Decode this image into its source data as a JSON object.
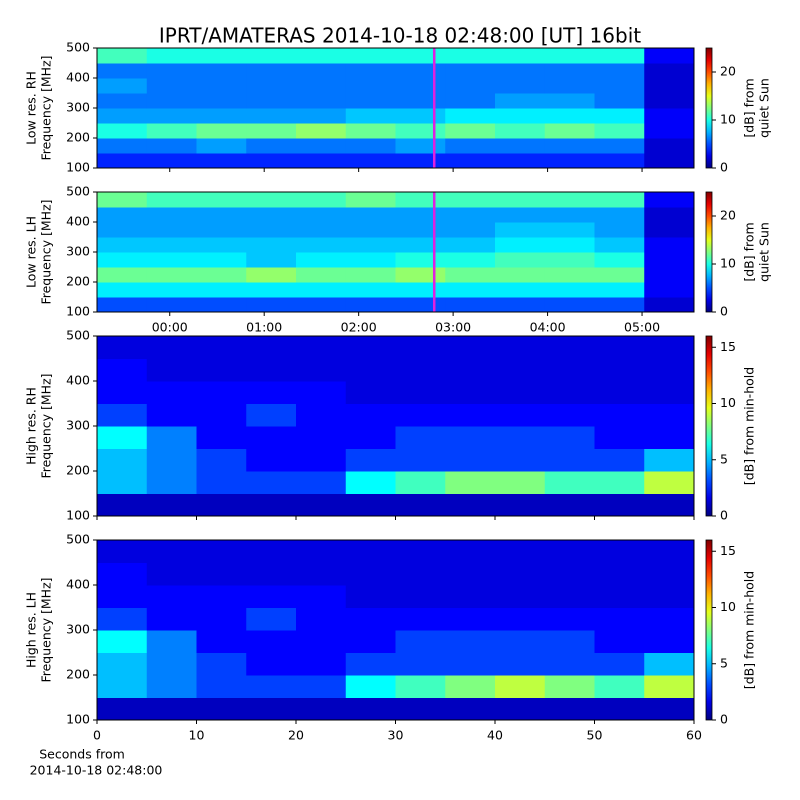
{
  "chart_data": [
    {
      "type": "heatmap",
      "title": "IPRT/AMATERAS 2014-10-18 02:48:00 [UT]   16bit",
      "ylabel": [
        "Low res. RH",
        "Frequency [MHz]"
      ],
      "colorbar_label": [
        "[dB] from",
        "quiet Sun"
      ],
      "xlim": [
        -0.77,
        5.55
      ],
      "ylim": [
        100,
        500
      ],
      "yticks": [
        100,
        200,
        300,
        400,
        500
      ],
      "zlim": [
        0,
        25
      ],
      "zticks": [
        0,
        10,
        20
      ],
      "marker_x": 2.8,
      "marker_color": "#e020e0",
      "z": [
        [
          4,
          4,
          4,
          4,
          4,
          4,
          4,
          4,
          4,
          4,
          4,
          2
        ],
        [
          6,
          6,
          7,
          6,
          6,
          6,
          7,
          6,
          6,
          6,
          6,
          2
        ],
        [
          10,
          11,
          12,
          12,
          13,
          12,
          11,
          12,
          11,
          12,
          11,
          3
        ],
        [
          7,
          7,
          7,
          7,
          7,
          8,
          8,
          9,
          9,
          9,
          9,
          3
        ],
        [
          6,
          6,
          6,
          6,
          6,
          6,
          6,
          6,
          7,
          7,
          6,
          2
        ],
        [
          7,
          6,
          6,
          6,
          6,
          6,
          6,
          6,
          6,
          6,
          6,
          2
        ],
        [
          6,
          6,
          6,
          6,
          6,
          6,
          6,
          6,
          6,
          6,
          6,
          2
        ],
        [
          11,
          10,
          10,
          10,
          10,
          10,
          10,
          10,
          10,
          10,
          10,
          3
        ]
      ]
    },
    {
      "type": "heatmap",
      "ylabel": [
        "Low res. LH",
        "Frequency [MHz]"
      ],
      "colorbar_label": [
        "[dB] from",
        "quiet Sun"
      ],
      "xlim": [
        -0.77,
        5.55
      ],
      "xticks": [
        {
          "value": 0,
          "label": "00:00"
        },
        {
          "value": 1,
          "label": "01:00"
        },
        {
          "value": 2,
          "label": "02:00"
        },
        {
          "value": 3,
          "label": "03:00"
        },
        {
          "value": 4,
          "label": "04:00"
        },
        {
          "value": 5,
          "label": "05:00"
        }
      ],
      "ylim": [
        100,
        500
      ],
      "yticks": [
        100,
        200,
        300,
        400,
        500
      ],
      "zlim": [
        0,
        25
      ],
      "zticks": [
        0,
        10,
        20
      ],
      "marker_x": 2.8,
      "marker_color": "#e020e0",
      "z": [
        [
          5,
          5,
          5,
          5,
          5,
          5,
          5,
          5,
          5,
          5,
          5,
          2
        ],
        [
          9,
          9,
          9,
          9,
          9,
          9,
          9,
          9,
          9,
          9,
          9,
          3
        ],
        [
          12,
          12,
          12,
          13,
          12,
          12,
          13,
          12,
          12,
          12,
          12,
          3
        ],
        [
          9,
          9,
          9,
          8,
          9,
          9,
          10,
          10,
          11,
          11,
          10,
          3
        ],
        [
          8,
          8,
          8,
          8,
          8,
          8,
          8,
          8,
          9,
          9,
          8,
          3
        ],
        [
          7,
          7,
          7,
          7,
          7,
          7,
          7,
          7,
          8,
          8,
          7,
          2
        ],
        [
          7,
          7,
          7,
          7,
          7,
          7,
          7,
          7,
          7,
          7,
          7,
          2
        ],
        [
          12,
          11,
          11,
          11,
          11,
          12,
          11,
          11,
          11,
          11,
          11,
          3
        ]
      ]
    },
    {
      "type": "heatmap",
      "ylabel": [
        "High res. RH",
        "Frequency [MHz]"
      ],
      "colorbar_label": [
        "[dB] from min-hold"
      ],
      "xlim": [
        0,
        60
      ],
      "ylim": [
        100,
        500
      ],
      "yticks": [
        100,
        200,
        300,
        400,
        500
      ],
      "zlim": [
        0,
        16
      ],
      "zticks": [
        0,
        5,
        10,
        15
      ],
      "z": [
        [
          1,
          1,
          1,
          1,
          1,
          1,
          1,
          1,
          1,
          1,
          1,
          1
        ],
        [
          5,
          4,
          3,
          3,
          3,
          6,
          7,
          8,
          8,
          7,
          7,
          9
        ],
        [
          5,
          4,
          3,
          2,
          2,
          3,
          3,
          3,
          3,
          3,
          3,
          5
        ],
        [
          6,
          4,
          2,
          2,
          2,
          2,
          3,
          3,
          3,
          3,
          2,
          2
        ],
        [
          3,
          2,
          2,
          3,
          2,
          2,
          2,
          2,
          2,
          2,
          2,
          2
        ],
        [
          2,
          2,
          2,
          2,
          2,
          1.5,
          1.5,
          1.5,
          1.5,
          1.5,
          1.5,
          1.5
        ],
        [
          2,
          1.5,
          1.5,
          1.5,
          1.5,
          1.5,
          1.5,
          1.5,
          1.5,
          1.5,
          1.5,
          1.5
        ],
        [
          1.5,
          1.5,
          1.5,
          1.5,
          1.5,
          1.5,
          1.5,
          1.5,
          1.5,
          1.5,
          1.5,
          1.5
        ]
      ]
    },
    {
      "type": "heatmap",
      "ylabel": [
        "High res. LH",
        "Frequency [MHz]"
      ],
      "colorbar_label": [
        "[dB] from min-hold"
      ],
      "xlabel": [
        "Seconds from",
        "2014-10-18 02:48:00"
      ],
      "xlim": [
        0,
        60
      ],
      "xticks": [
        0,
        10,
        20,
        30,
        40,
        50,
        60
      ],
      "ylim": [
        100,
        500
      ],
      "yticks": [
        100,
        200,
        300,
        400,
        500
      ],
      "zlim": [
        0,
        16
      ],
      "zticks": [
        0,
        5,
        10,
        15
      ],
      "z": [
        [
          1,
          1,
          1,
          1,
          1,
          1,
          1,
          1,
          1,
          1,
          1,
          1
        ],
        [
          5,
          4,
          3,
          3,
          3,
          6,
          7,
          8,
          9,
          8,
          7,
          9
        ],
        [
          5,
          4,
          3,
          2,
          2,
          3,
          3,
          3,
          3,
          3,
          3,
          5
        ],
        [
          6,
          4,
          2,
          2,
          2,
          2,
          3,
          3,
          3,
          3,
          2,
          2
        ],
        [
          3,
          2,
          2,
          3,
          2,
          2,
          2,
          2,
          2,
          2,
          2,
          2
        ],
        [
          2,
          2,
          2,
          2,
          2,
          1.5,
          1.5,
          1.5,
          1.5,
          1.5,
          1.5,
          1.5
        ],
        [
          2,
          1.5,
          1.5,
          1.5,
          1.5,
          1.5,
          1.5,
          1.5,
          1.5,
          1.5,
          1.5,
          1.5
        ],
        [
          1.5,
          1.5,
          1.5,
          1.5,
          1.5,
          1.5,
          1.5,
          1.5,
          1.5,
          1.5,
          1.5,
          1.5
        ]
      ]
    }
  ]
}
